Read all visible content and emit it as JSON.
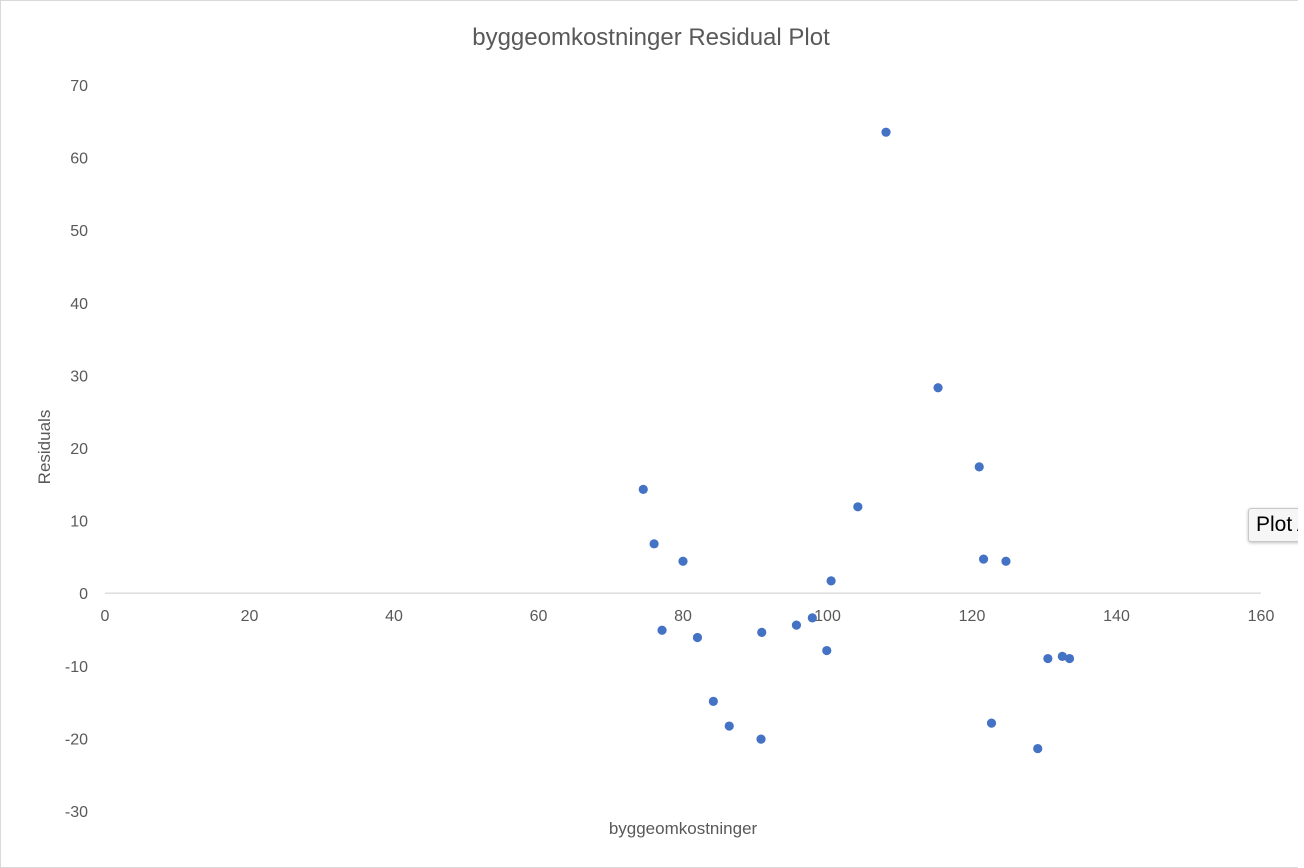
{
  "chart_data": {
    "type": "scatter",
    "title": "byggeomkostninger  Residual Plot",
    "xlabel": "byggeomkostninger",
    "ylabel": "Residuals",
    "xlim": [
      0,
      160
    ],
    "ylim": [
      -30,
      70
    ],
    "x_ticks": [
      0,
      20,
      40,
      60,
      80,
      100,
      120,
      140,
      160
    ],
    "y_ticks": [
      -30,
      -20,
      -10,
      0,
      10,
      20,
      30,
      40,
      50,
      60,
      70
    ],
    "grid": false,
    "legend": "none",
    "marker_color": "#4472c4",
    "points": [
      {
        "x": 74.5,
        "y": 14.3
      },
      {
        "x": 76.0,
        "y": 6.8
      },
      {
        "x": 77.1,
        "y": -5.1
      },
      {
        "x": 80.0,
        "y": 4.4
      },
      {
        "x": 82.0,
        "y": -6.1
      },
      {
        "x": 84.2,
        "y": -14.9
      },
      {
        "x": 86.4,
        "y": -18.3
      },
      {
        "x": 90.8,
        "y": -20.1
      },
      {
        "x": 90.9,
        "y": -5.4
      },
      {
        "x": 95.7,
        "y": -4.4
      },
      {
        "x": 97.9,
        "y": -3.4
      },
      {
        "x": 99.9,
        "y": -7.9
      },
      {
        "x": 100.5,
        "y": 1.7
      },
      {
        "x": 104.2,
        "y": 11.9
      },
      {
        "x": 108.1,
        "y": 63.5
      },
      {
        "x": 115.3,
        "y": 28.3
      },
      {
        "x": 121.0,
        "y": 17.4
      },
      {
        "x": 121.6,
        "y": 4.7
      },
      {
        "x": 122.7,
        "y": -17.9
      },
      {
        "x": 124.7,
        "y": 4.4
      },
      {
        "x": 129.1,
        "y": -21.4
      },
      {
        "x": 130.5,
        "y": -9.0
      },
      {
        "x": 132.5,
        "y": -8.7
      },
      {
        "x": 133.5,
        "y": -9.0
      }
    ]
  },
  "side_tab": {
    "label": "Plot A"
  }
}
